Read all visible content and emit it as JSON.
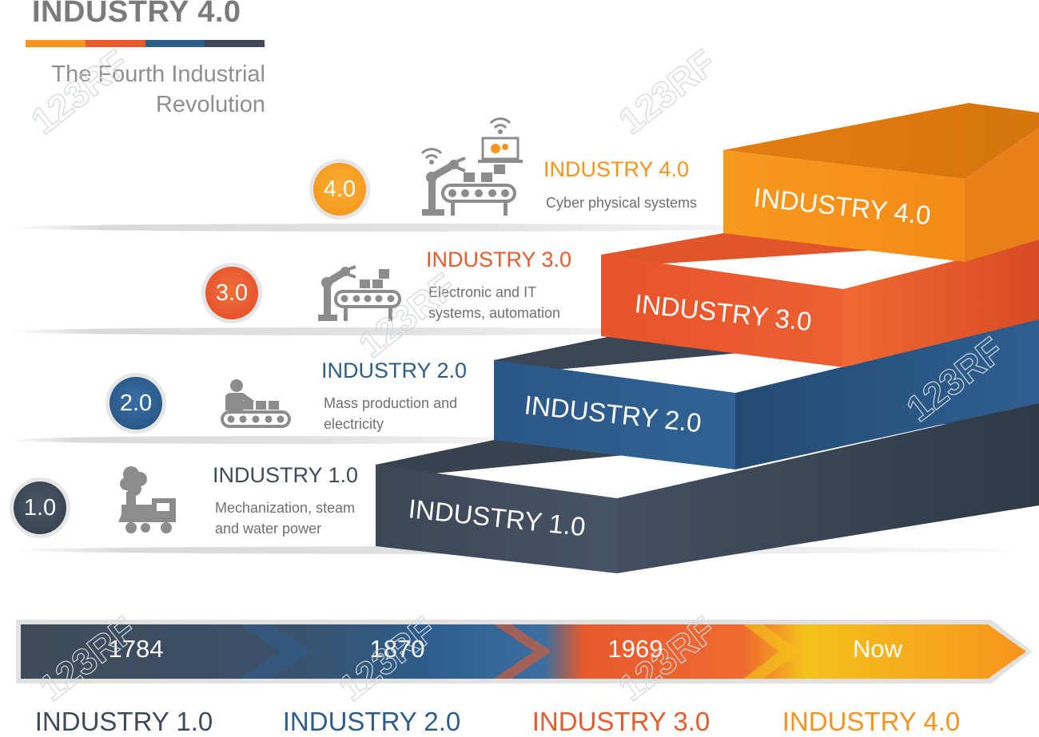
{
  "header": {
    "title": "INDUSTRY 4.0",
    "subtitle_line1": "The Fourth Industrial",
    "subtitle_line2": "Revolution",
    "bar_colors": [
      "#f7941d",
      "#e85a2c",
      "#2d5d8a",
      "#3f4a59"
    ]
  },
  "steps": [
    {
      "badge": "1.0",
      "heading": "INDUSTRY 1.0",
      "desc_line1": "Mechanization, steam",
      "desc_line2": "and water power",
      "stair_label": "INDUSTRY 1.0",
      "icon": "steam-locomotive-icon",
      "color": "#3f4a59",
      "heading_color": "#3f4a59"
    },
    {
      "badge": "2.0",
      "heading": "INDUSTRY 2.0",
      "desc_line1": "Mass production and",
      "desc_line2": "electricity",
      "stair_label": "INDUSTRY 2.0",
      "icon": "assembly-line-worker-icon",
      "color": "#2d5d8a",
      "heading_color": "#2d5d8a"
    },
    {
      "badge": "3.0",
      "heading": "INDUSTRY 3.0",
      "desc_line1": "Electronic and IT",
      "desc_line2": "systems, automation",
      "stair_label": "INDUSTRY 3.0",
      "icon": "robot-arm-conveyor-icon",
      "color": "#e85a2c",
      "heading_color": "#e85a2c"
    },
    {
      "badge": "4.0",
      "heading": "INDUSTRY 4.0",
      "desc_line1": "Cyber physical systems",
      "desc_line2": "",
      "stair_label": "INDUSTRY 4.0",
      "icon": "connected-robot-factory-icon",
      "color": "#f7941d",
      "heading_color": "#f7941d"
    }
  ],
  "timeline": [
    {
      "label": "1784",
      "caption": "INDUSTRY 1.0",
      "color": "#3f4a59"
    },
    {
      "label": "1870",
      "caption": "INDUSTRY 2.0",
      "color": "#2d5d8a"
    },
    {
      "label": "1969",
      "caption": "INDUSTRY 3.0",
      "color": "#e85a2c"
    },
    {
      "label": "Now",
      "caption": "INDUSTRY 4.0",
      "color": "#f7941d"
    }
  ],
  "watermark": "123RF"
}
